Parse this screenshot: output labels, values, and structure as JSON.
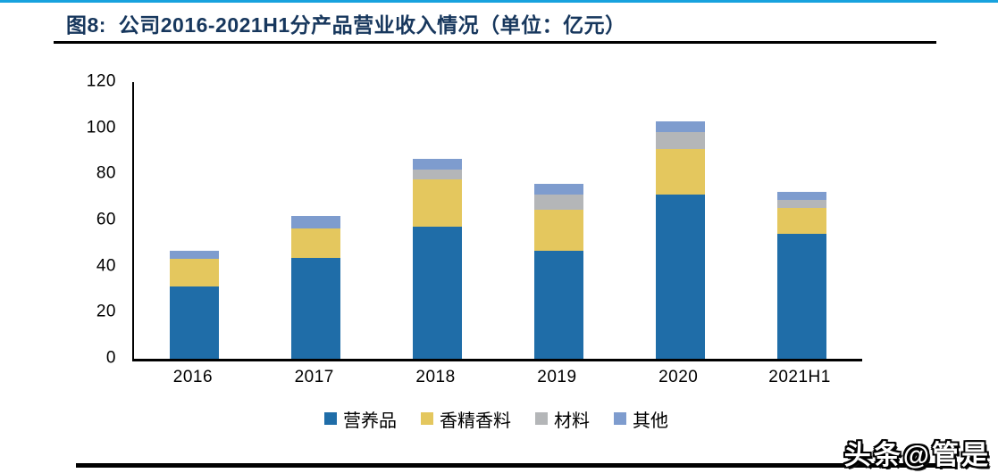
{
  "header": {
    "title": "图8:  公司2016-2021H1分产品营业收入情况（单位：亿元）"
  },
  "footer": {
    "watermark": "头条@管是"
  },
  "colors": {
    "top_accent": "#17A2DE",
    "title_text": "#17375D",
    "rule": "#000000"
  },
  "chart_data": {
    "type": "bar",
    "stacked": true,
    "title": "公司2016-2021H1分产品营业收入情况",
    "unit": "亿元",
    "categories": [
      "2016",
      "2017",
      "2018",
      "2019",
      "2020",
      "2021H1"
    ],
    "series": [
      {
        "name": "营养品",
        "color": "#1F6DA8",
        "values": [
          31.2,
          43.6,
          57.2,
          47.0,
          71.3,
          54.2
        ]
      },
      {
        "name": "香精香料",
        "color": "#E4C75E",
        "values": [
          12.1,
          13.1,
          20.5,
          17.7,
          19.8,
          11.1
        ]
      },
      {
        "name": "材料",
        "color": "#B4B6B8",
        "values": [
          0,
          0,
          4.2,
          6.4,
          7.1,
          3.8
        ]
      },
      {
        "name": "其他",
        "color": "#7E9CCE",
        "values": [
          3.5,
          5.4,
          4.8,
          4.7,
          4.8,
          3.3
        ]
      }
    ],
    "totals": [
      46.8,
      62.1,
      86.7,
      75.8,
      103.0,
      72.4
    ],
    "ylim": [
      0,
      120
    ],
    "yticks": [
      0,
      20,
      40,
      60,
      80,
      100,
      120
    ],
    "grid": false,
    "legend_position": "bottom"
  }
}
